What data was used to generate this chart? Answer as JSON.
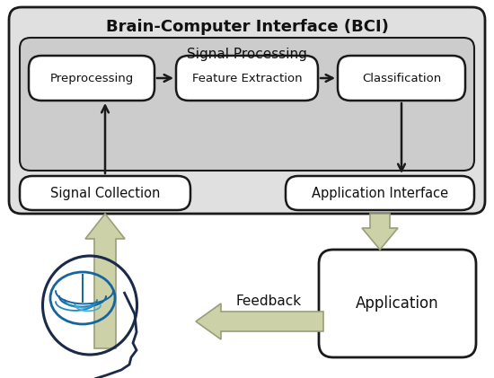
{
  "title": "Brain-Computer Interface (BCI)",
  "bg_outer": "#e0e0e0",
  "bg_inner": "#cccccc",
  "box_fill": "#ffffff",
  "box_edge": "#1a1a1a",
  "arrow_color": "#cdd1a8",
  "arrow_edge": "#9a9e7a",
  "inner_arrow_color": "#1a1a1a",
  "signal_processing_label": "Signal Processing",
  "boxes_top": [
    "Preprocessing",
    "Feature Extraction",
    "Classification"
  ],
  "boxes_bottom_left": "Signal Collection",
  "boxes_bottom_right": "Application Interface",
  "app_box": "Application",
  "feedback_label": "Feedback",
  "figsize": [
    5.5,
    4.21
  ],
  "dpi": 100
}
